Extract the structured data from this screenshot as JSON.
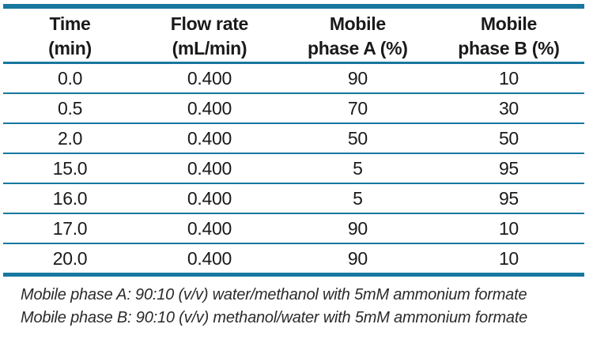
{
  "colors": {
    "accent": "#17779f",
    "text": "#1a1a1a"
  },
  "table": {
    "columns": [
      {
        "line1": "Time",
        "line2": "(min)"
      },
      {
        "line1": "Flow rate",
        "line2": "(mL/min)"
      },
      {
        "line1": "Mobile",
        "line2": "phase A (%)"
      },
      {
        "line1": "Mobile",
        "line2": "phase B (%)"
      }
    ],
    "rows": [
      [
        "0.0",
        "0.400",
        "90",
        "10"
      ],
      [
        "0.5",
        "0.400",
        "70",
        "30"
      ],
      [
        "2.0",
        "0.400",
        "50",
        "50"
      ],
      [
        "15.0",
        "0.400",
        "5",
        "95"
      ],
      [
        "16.0",
        "0.400",
        "5",
        "95"
      ],
      [
        "17.0",
        "0.400",
        "90",
        "10"
      ],
      [
        "20.0",
        "0.400",
        "90",
        "10"
      ]
    ]
  },
  "footnotes": [
    "Mobile phase A: 90:10 (v/v) water/methanol with 5mM ammonium formate",
    "Mobile phase B: 90:10 (v/v) methanol/water with 5mM ammonium formate"
  ]
}
